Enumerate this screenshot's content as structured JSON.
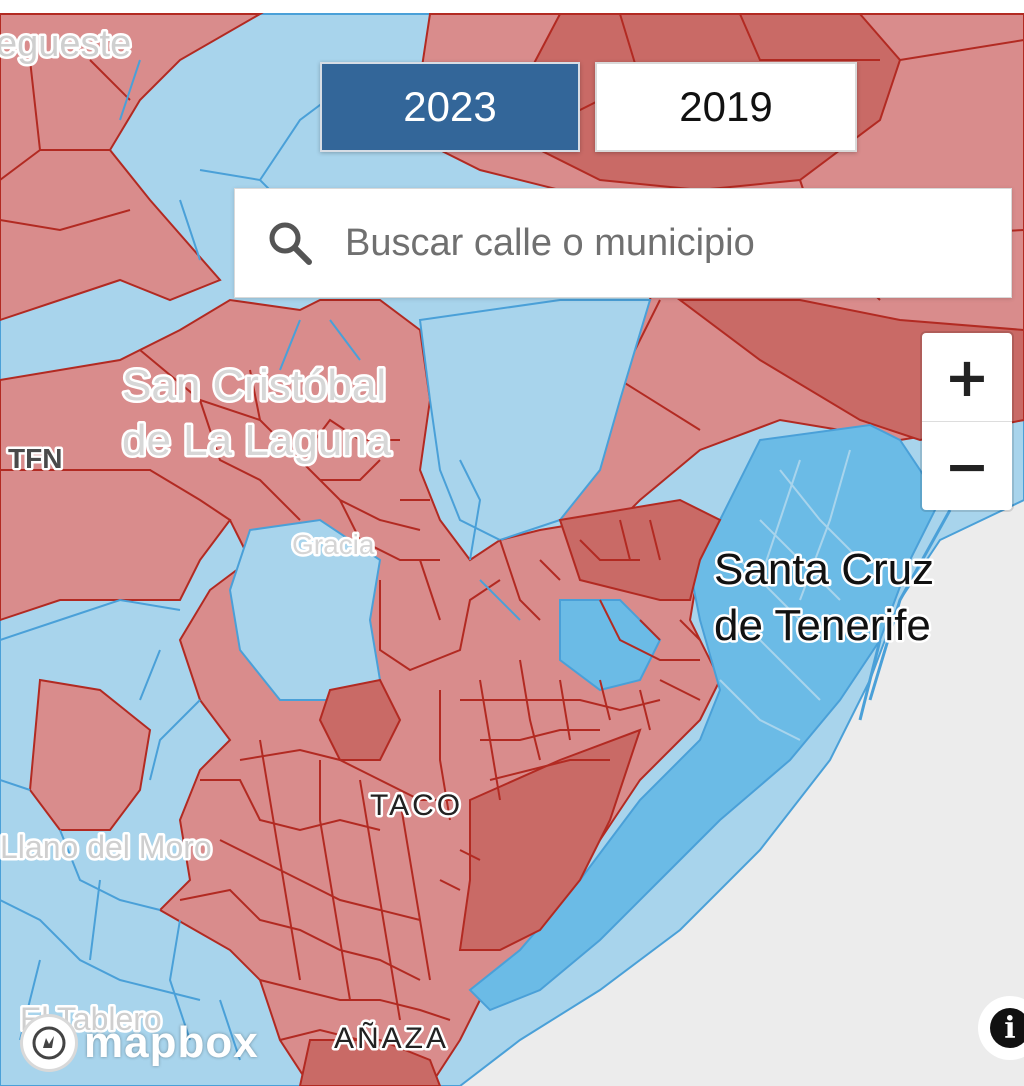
{
  "map": {
    "place_labels": {
      "egueste": "egueste",
      "san_cristobal_line1": "San Cristóbal",
      "san_cristobal_line2": "de La Laguna",
      "tfn": "TFN",
      "gracia": "Gracia",
      "santa_cruz_line1": "Santa Cruz",
      "santa_cruz_line2": "de Tenerife",
      "taco": "TACO",
      "llano_del_moro": "Llano del Moro",
      "el_tablero": "El Tablero",
      "anaza": "AÑAZA"
    },
    "colors": {
      "red_fill": "#d98c8c",
      "red_dark_fill": "#c96a66",
      "red_border": "#b22a22",
      "blue_fill": "#a8d4ec",
      "blue_dark_fill": "#6bbbe6",
      "blue_border": "#4aa0d8",
      "sea": "#ececec"
    }
  },
  "year_selector": {
    "active": "2023",
    "options": [
      "2023",
      "2019"
    ]
  },
  "search": {
    "placeholder": "Buscar calle o municipio"
  },
  "zoom": {
    "in_label": "+",
    "out_label": "−"
  },
  "attribution": {
    "logo_text": "mapbox",
    "info_label": "i"
  }
}
